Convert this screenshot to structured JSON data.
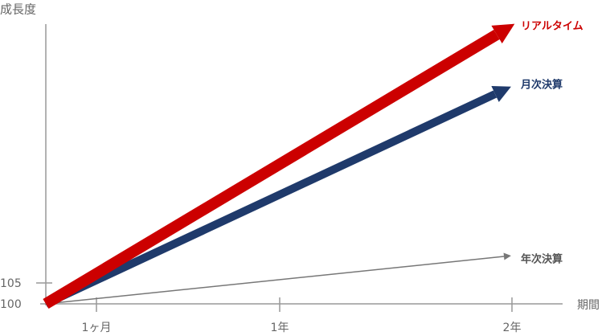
{
  "y_axis": {
    "title": "成長度",
    "ticks": [
      "100",
      "105"
    ]
  },
  "x_axis": {
    "title": "期間",
    "ticks": [
      "1ヶ月",
      "1年",
      "2年"
    ]
  },
  "series": [
    {
      "label": "リアルタイム"
    },
    {
      "label": "月次決算"
    },
    {
      "label": "年次決算"
    }
  ]
}
